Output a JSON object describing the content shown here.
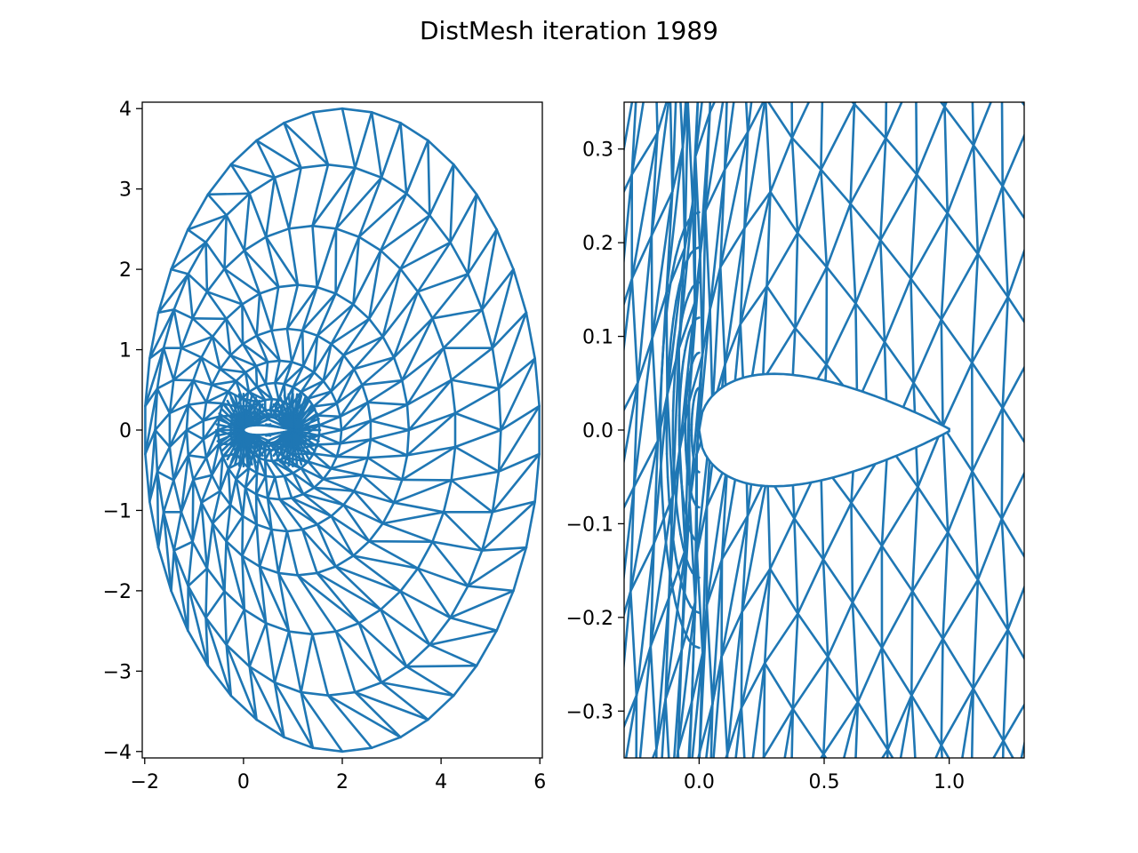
{
  "title": "DistMesh iteration 1989",
  "chart_data": [
    {
      "type": "mesh",
      "series_color": "#1f77b4",
      "xlim": [
        -2.05,
        6.05
      ],
      "ylim": [
        -4.08,
        4.08
      ],
      "xticks": [
        -2,
        0,
        2,
        4,
        6
      ],
      "xtick_labels": [
        "−2",
        "0",
        "2",
        "4",
        "6"
      ],
      "yticks": [
        -4,
        -3,
        -2,
        -1,
        0,
        1,
        2,
        3,
        4
      ],
      "ytick_labels": [
        "−4",
        "−3",
        "−2",
        "−1",
        "0",
        "1",
        "2",
        "3",
        "4"
      ],
      "domain": {
        "outer_ellipse": {
          "center": [
            2,
            0
          ],
          "rx": 4,
          "ry": 4
        },
        "airfoil": {
          "leading_edge": [
            0,
            0
          ],
          "trailing_edge": [
            1,
            0
          ],
          "max_thickness": 0.06
        }
      }
    },
    {
      "type": "mesh",
      "series_color": "#1f77b4",
      "xlim": [
        -0.3,
        1.3
      ],
      "ylim": [
        -0.35,
        0.35
      ],
      "xticks": [
        0.0,
        0.5,
        1.0
      ],
      "xtick_labels": [
        "0.0",
        "0.5",
        "1.0"
      ],
      "yticks": [
        -0.3,
        -0.2,
        -0.1,
        0.0,
        0.1,
        0.2,
        0.3
      ],
      "ytick_labels": [
        "−0.3",
        "−0.2",
        "−0.1",
        "0.0",
        "0.1",
        "0.2",
        "0.3"
      ],
      "domain": {
        "airfoil": {
          "leading_edge": [
            0,
            0
          ],
          "trailing_edge": [
            1,
            0
          ],
          "max_thickness": 0.06
        }
      }
    }
  ]
}
